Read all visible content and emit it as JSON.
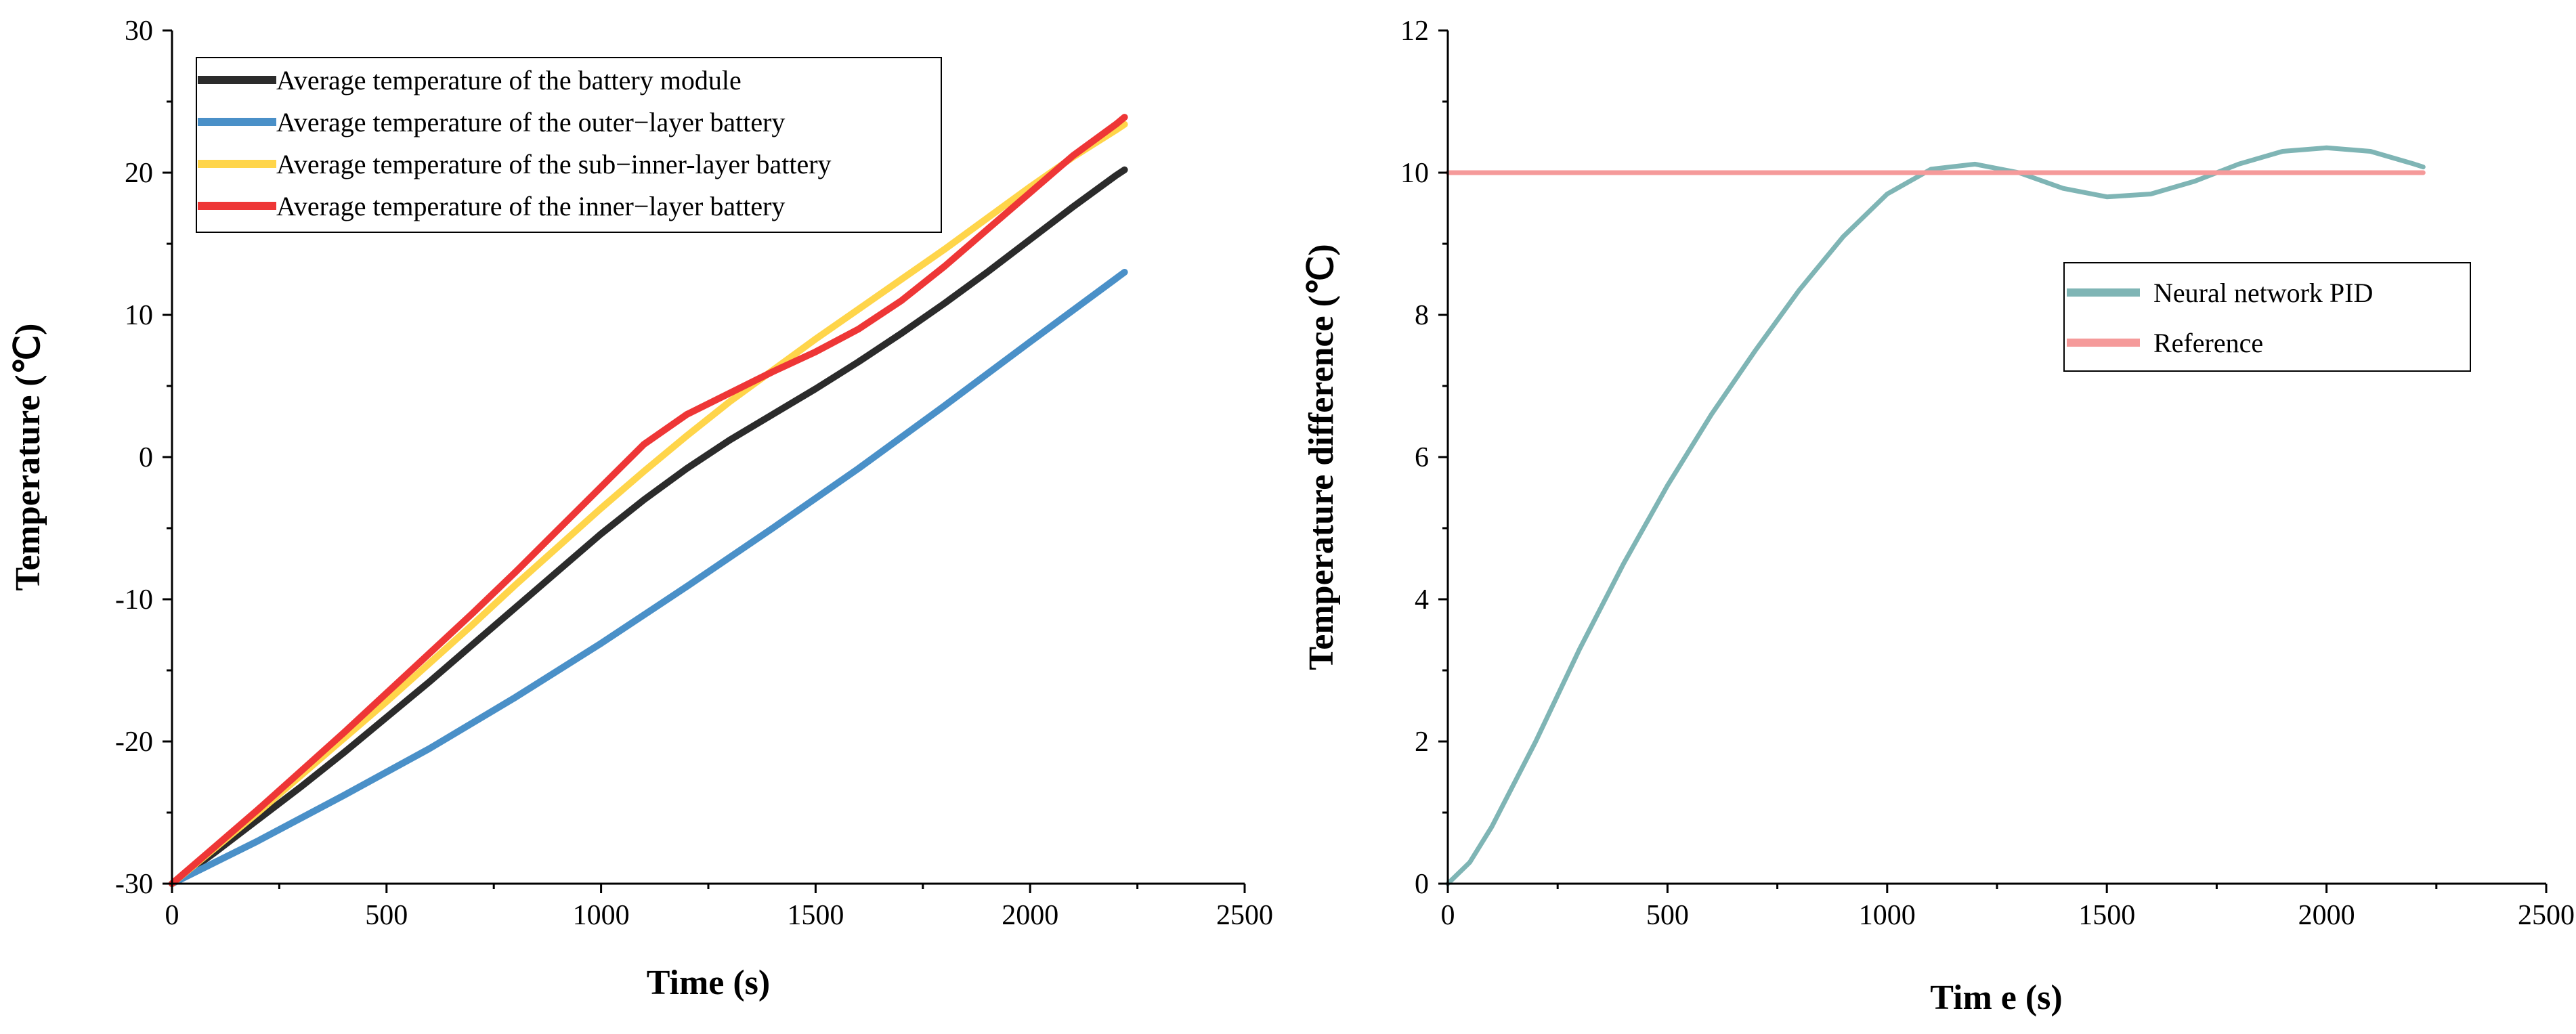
{
  "chart_data": [
    {
      "type": "line",
      "title": "",
      "xlabel": "Time (s)",
      "ylabel": "Temperature (℃)",
      "xlim": [
        0,
        2500
      ],
      "ylim": [
        -30,
        30
      ],
      "xticks": [
        "0",
        "500",
        "1000",
        "1500",
        "2000",
        "2500"
      ],
      "yticks": [
        "-30",
        "-20",
        "-10",
        "0",
        "10",
        "20",
        "30"
      ],
      "legend_position": "top-left",
      "series": [
        {
          "name": "Average temperature of the battery module",
          "color": "#2b2b2b",
          "x": [
            0,
            100,
            200,
            300,
            400,
            500,
            600,
            700,
            800,
            900,
            1000,
            1100,
            1200,
            1300,
            1400,
            1500,
            1600,
            1700,
            1800,
            1900,
            2000,
            2100,
            2200,
            2220
          ],
          "y": [
            -30,
            -27.8,
            -25.5,
            -23.2,
            -20.8,
            -18.3,
            -15.8,
            -13.2,
            -10.6,
            -8.0,
            -5.4,
            -3.0,
            -0.8,
            1.2,
            3.0,
            4.8,
            6.7,
            8.7,
            10.8,
            13.0,
            15.3,
            17.6,
            19.8,
            20.2
          ]
        },
        {
          "name": "Average temperature of the outer−layer battery",
          "color": "#4a90c8",
          "x": [
            0,
            200,
            400,
            600,
            800,
            1000,
            1200,
            1400,
            1600,
            1800,
            2000,
            2220
          ],
          "y": [
            -30,
            -27.0,
            -23.8,
            -20.5,
            -16.9,
            -13.1,
            -9.1,
            -5.0,
            -0.8,
            3.6,
            8.1,
            13.0
          ]
        },
        {
          "name": "Average temperature of the sub−inner-layer battery",
          "color": "#ffd54a",
          "x": [
            0,
            100,
            200,
            300,
            400,
            500,
            600,
            700,
            800,
            900,
            1000,
            1100,
            1200,
            1300,
            1400,
            1500,
            1600,
            1700,
            1800,
            1900,
            2000,
            2100,
            2200,
            2220
          ],
          "y": [
            -30,
            -27.5,
            -25.0,
            -22.4,
            -19.8,
            -17.2,
            -14.5,
            -11.8,
            -9.0,
            -6.3,
            -3.6,
            -1.0,
            1.5,
            3.9,
            6.1,
            8.3,
            10.4,
            12.5,
            14.6,
            16.8,
            19.0,
            21.1,
            23.0,
            23.4
          ]
        },
        {
          "name": "Average temperature of the inner−layer battery",
          "color": "#ee3636",
          "x": [
            0,
            100,
            200,
            300,
            400,
            500,
            600,
            700,
            800,
            900,
            1000,
            1100,
            1200,
            1300,
            1400,
            1500,
            1600,
            1700,
            1800,
            1900,
            2000,
            2100,
            2200,
            2220
          ],
          "y": [
            -30,
            -27.4,
            -24.8,
            -22.1,
            -19.4,
            -16.6,
            -13.8,
            -11.0,
            -8.1,
            -5.1,
            -2.1,
            0.9,
            3.0,
            4.5,
            6.0,
            7.4,
            9.0,
            11.0,
            13.4,
            16.0,
            18.6,
            21.2,
            23.4,
            23.9
          ]
        }
      ]
    },
    {
      "type": "line",
      "title": "",
      "xlabel": "Tim e (s)",
      "ylabel": "Temperature difference (℃)",
      "xlim": [
        0,
        2500
      ],
      "ylim": [
        0,
        12
      ],
      "xticks": [
        "0",
        "500",
        "1000",
        "1500",
        "2000",
        "2500"
      ],
      "yticks": [
        "0",
        "2",
        "4",
        "6",
        "8",
        "10",
        "12"
      ],
      "legend_position": "center-right",
      "series": [
        {
          "name": "Neural network PID",
          "color": "#7fb5b5",
          "x": [
            0,
            50,
            100,
            200,
            300,
            400,
            500,
            600,
            700,
            800,
            900,
            1000,
            1100,
            1200,
            1300,
            1400,
            1500,
            1600,
            1700,
            1800,
            1900,
            2000,
            2100,
            2200,
            2220
          ],
          "y": [
            0,
            0.3,
            0.8,
            2.0,
            3.3,
            4.5,
            5.6,
            6.6,
            7.5,
            8.35,
            9.1,
            9.7,
            10.05,
            10.12,
            10.0,
            9.78,
            9.66,
            9.7,
            9.88,
            10.12,
            10.3,
            10.35,
            10.3,
            10.12,
            10.08
          ]
        },
        {
          "name": "Reference",
          "color": "#f59a9a",
          "x": [
            0,
            2220
          ],
          "y": [
            10,
            10
          ]
        }
      ]
    }
  ]
}
